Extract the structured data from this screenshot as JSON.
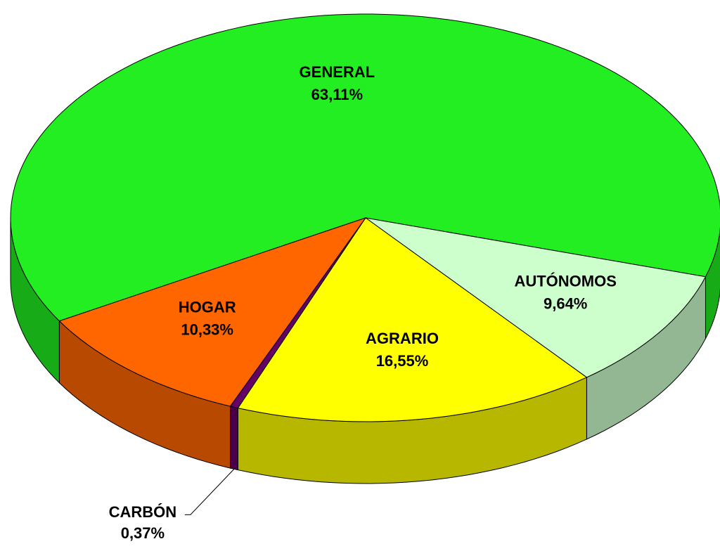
{
  "chart_data": {
    "type": "pie3d",
    "categories": [
      "GENERAL",
      "AUTÓNOMOS",
      "AGRARIO",
      "CARBÓN",
      "HOGAR"
    ],
    "values": [
      63.11,
      9.64,
      16.55,
      0.37,
      10.33
    ],
    "value_labels": [
      "63,11%",
      "9,64%",
      "16,55%",
      "0,37%",
      "10,33%"
    ],
    "colors": [
      "#22ee22",
      "#ccffcc",
      "#ffff00",
      "#660066",
      "#ff6600"
    ]
  }
}
